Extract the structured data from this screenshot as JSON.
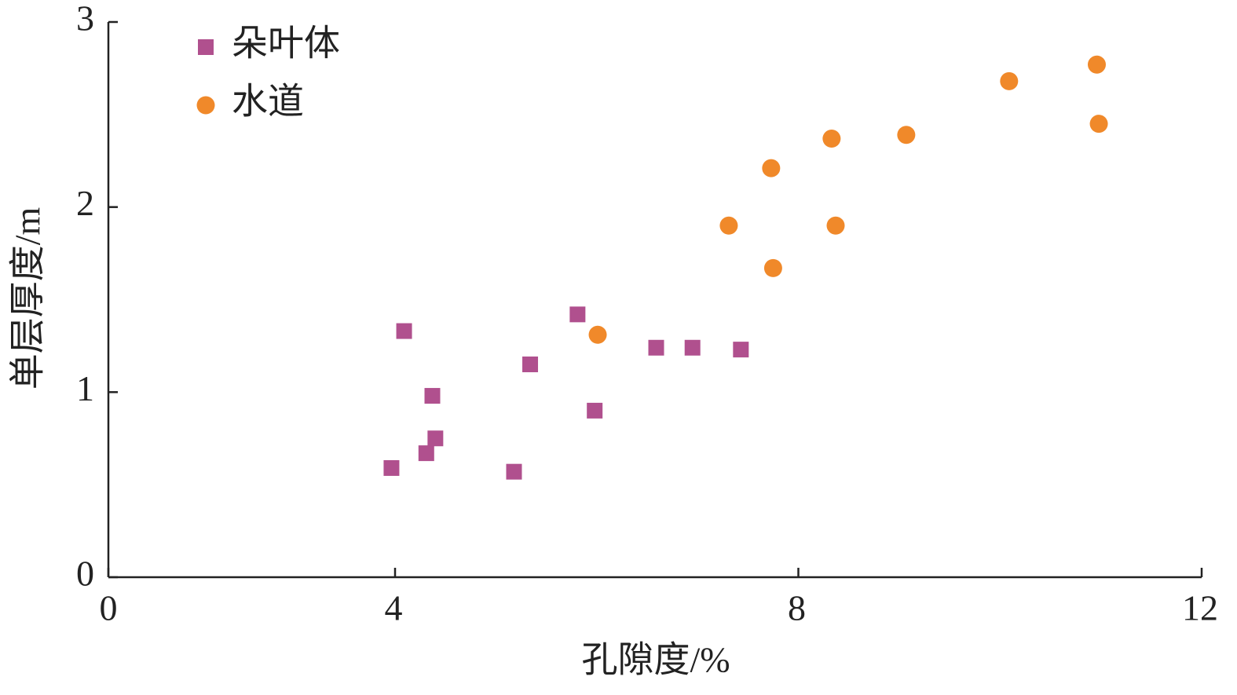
{
  "chart_data": {
    "type": "scatter",
    "xlabel": "孔隙度/%",
    "ylabel": "单层厚度/m",
    "xlim": [
      0,
      12
    ],
    "xticks": [
      0,
      4,
      8,
      12
    ],
    "ylim": [
      0,
      3
    ],
    "yticks": [
      0,
      1,
      2,
      3
    ],
    "legend": "upper left",
    "series": [
      {
        "name": "朵叶体",
        "color": "#b0508e",
        "marker": "square",
        "x": [
          3.95,
          4.09,
          4.37,
          4.4,
          4.31,
          5.18,
          5.34,
          5.81,
          5.98,
          6.59,
          6.95,
          7.43
        ],
        "values": [
          0.59,
          1.33,
          0.98,
          0.75,
          0.67,
          0.57,
          1.15,
          1.42,
          0.9,
          1.24,
          1.24,
          1.23
        ]
      },
      {
        "name": "水道",
        "color": "#f0892a",
        "marker": "circle",
        "x": [
          6.01,
          7.31,
          7.73,
          7.75,
          8.33,
          8.37,
          9.07,
          10.09,
          10.96,
          10.98
        ],
        "values": [
          1.31,
          1.9,
          2.21,
          1.67,
          2.37,
          1.9,
          2.39,
          2.68,
          2.77,
          2.45
        ]
      }
    ]
  }
}
